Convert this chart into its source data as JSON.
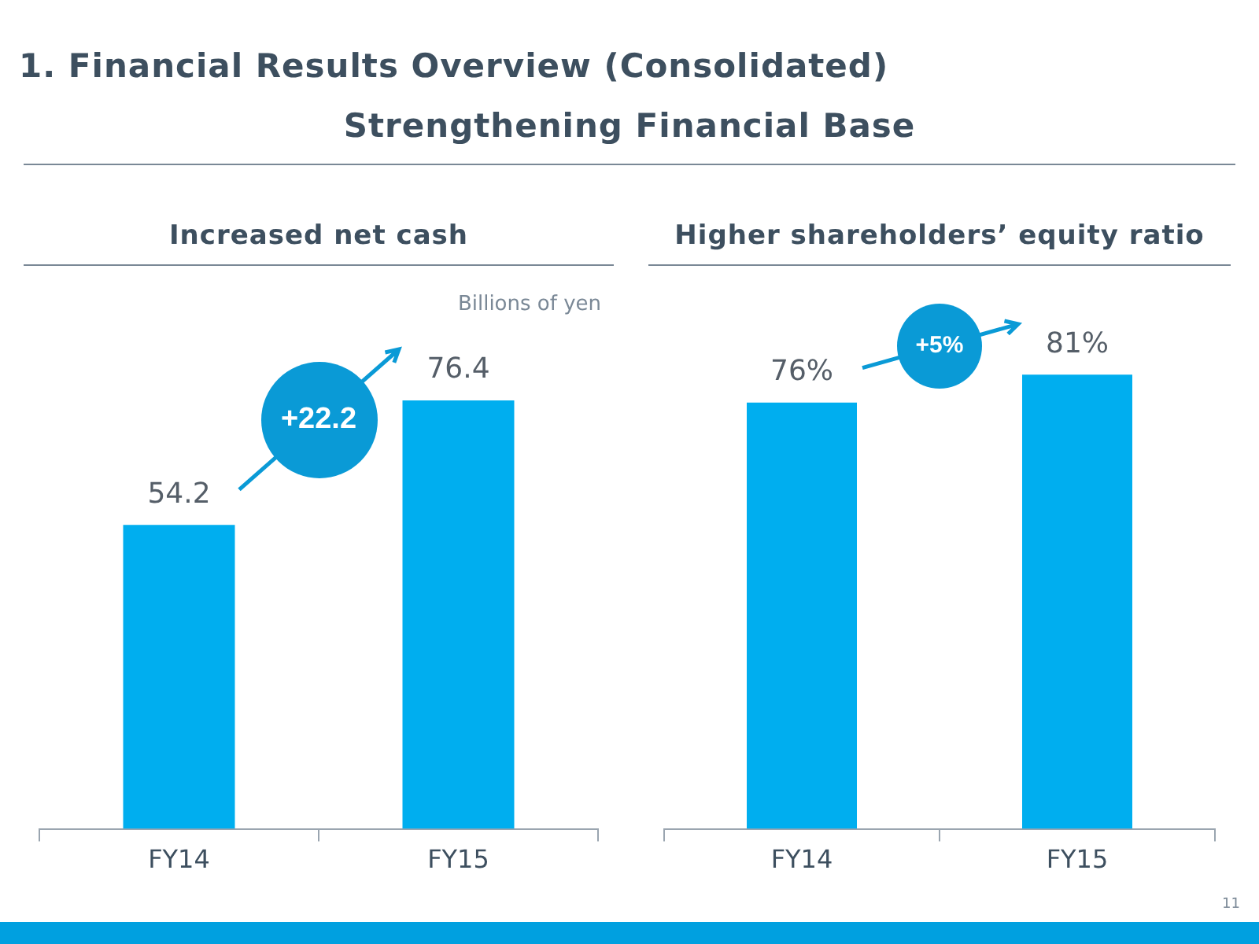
{
  "chart_data": [
    {
      "type": "other",
      "title": "1. Financial Results Overview (Consolidated)",
      "subtitle": "Strengthening Financial Base",
      "annotations": [
        "11"
      ]
    },
    {
      "type": "bar",
      "title": "Increased net cash",
      "ylabel": "Billions of yen",
      "categories": [
        "FY14",
        "FY15"
      ],
      "values": [
        54.2,
        76.4
      ],
      "color": "#00aeef",
      "data_labels": true,
      "grid": false,
      "legend": false,
      "annotations": [
        "+22.2"
      ]
    },
    {
      "type": "bar",
      "title": "Higher shareholders’ equity ratio",
      "categories": [
        "FY14",
        "FY15"
      ],
      "values": [
        76,
        81
      ],
      "value_labels": [
        "76%",
        "81%"
      ],
      "color": "#00aeef",
      "grid": false,
      "legend": false,
      "annotations": [
        "+5%"
      ]
    }
  ]
}
